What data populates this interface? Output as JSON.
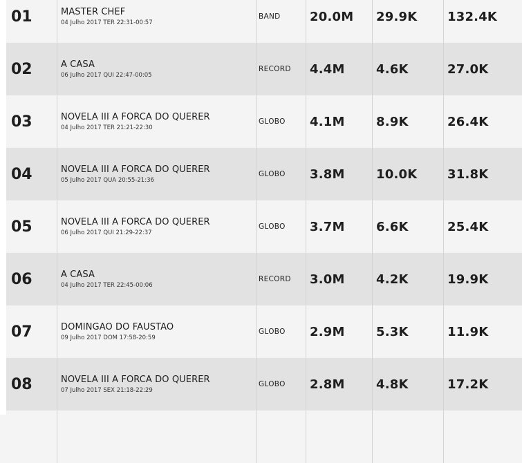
{
  "rows": [
    {
      "rank": "01",
      "program": "MASTER CHEF",
      "date": "04 Julho 2017 TER 22:31-00:57",
      "network": "BAND",
      "v1": "20.0M",
      "v2": "29.9K",
      "v3": "132.4K"
    },
    {
      "rank": "02",
      "program": "A CASA",
      "date": "06 Julho 2017 QUI 22:47-00:05",
      "network": "RECORD",
      "v1": "4.4M",
      "v2": "4.6K",
      "v3": "27.0K"
    },
    {
      "rank": "03",
      "program": "NOVELA III A FORCA DO QUERER",
      "date": "04 Julho 2017 TER 21:21-22:30",
      "network": "GLOBO",
      "v1": "4.1M",
      "v2": "8.9K",
      "v3": "26.4K"
    },
    {
      "rank": "04",
      "program": "NOVELA III A FORCA DO QUERER",
      "date": "05 Julho 2017 QUA 20:55-21:36",
      "network": "GLOBO",
      "v1": "3.8M",
      "v2": "10.0K",
      "v3": "31.8K"
    },
    {
      "rank": "05",
      "program": "NOVELA III A FORCA DO QUERER",
      "date": "06 Julho 2017 QUI 21:29-22:37",
      "network": "GLOBO",
      "v1": "3.7M",
      "v2": "6.6K",
      "v3": "25.4K"
    },
    {
      "rank": "06",
      "program": "A CASA",
      "date": "04 Julho 2017 TER 22:45-00:06",
      "network": "RECORD",
      "v1": "3.0M",
      "v2": "4.2K",
      "v3": "19.9K"
    },
    {
      "rank": "07",
      "program": "DOMINGAO DO FAUSTAO",
      "date": "09 Julho 2017 DOM 17:58-20:59",
      "network": "GLOBO",
      "v1": "2.9M",
      "v2": "5.3K",
      "v3": "11.9K"
    },
    {
      "rank": "08",
      "program": "NOVELA III A FORCA DO QUERER",
      "date": "07 Julho 2017 SEX 21:18-22:29",
      "network": "GLOBO",
      "v1": "2.8M",
      "v2": "4.8K",
      "v3": "17.2K"
    }
  ]
}
